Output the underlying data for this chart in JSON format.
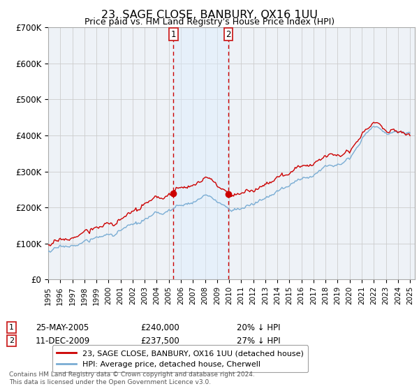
{
  "title": "23, SAGE CLOSE, BANBURY, OX16 1UU",
  "subtitle": "Price paid vs. HM Land Registry's House Price Index (HPI)",
  "ylim": [
    0,
    700000
  ],
  "yticks": [
    0,
    100000,
    200000,
    300000,
    400000,
    500000,
    600000,
    700000
  ],
  "ytick_labels": [
    "£0",
    "£100K",
    "£200K",
    "£300K",
    "£400K",
    "£500K",
    "£600K",
    "£700K"
  ],
  "x_start_year": 1995,
  "x_end_year": 2025,
  "sale1_date": 2005.39,
  "sale1_price": 240000,
  "sale2_date": 2009.94,
  "sale2_price": 237500,
  "line_color_property": "#cc0000",
  "line_color_hpi": "#7aadd4",
  "shading_color": "#ddeeff",
  "vline_color": "#cc0000",
  "legend_label_property": "23, SAGE CLOSE, BANBURY, OX16 1UU (detached house)",
  "legend_label_hpi": "HPI: Average price, detached house, Cherwell",
  "table_entry1_date": "25-MAY-2005",
  "table_entry1_price": "£240,000",
  "table_entry1_hpi": "20% ↓ HPI",
  "table_entry2_date": "11-DEC-2009",
  "table_entry2_price": "£237,500",
  "table_entry2_hpi": "27% ↓ HPI",
  "footer": "Contains HM Land Registry data © Crown copyright and database right 2024.\nThis data is licensed under the Open Government Licence v3.0.",
  "bg_color": "#ffffff",
  "plot_bg_color": "#eef2f7",
  "grid_color": "#cccccc"
}
